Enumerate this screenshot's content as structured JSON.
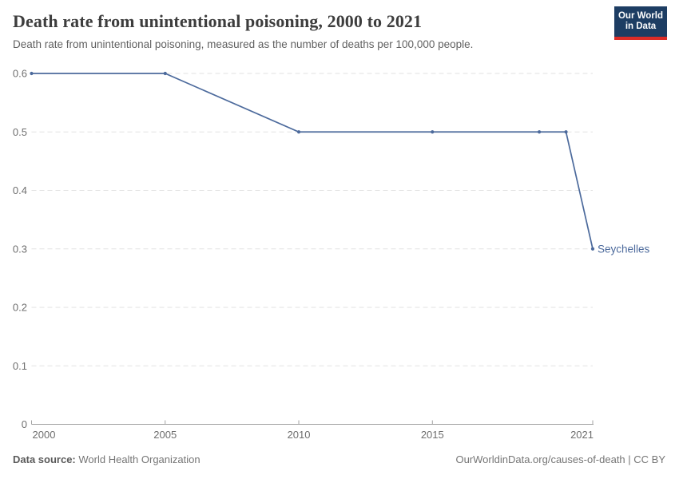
{
  "header": {
    "title": "Death rate from unintentional poisoning, 2000 to 2021",
    "subtitle": "Death rate from unintentional poisoning, measured as the number of deaths per 100,000 people.",
    "logo": {
      "line1": "Our World",
      "line2": "in Data",
      "bg_color": "#1d3d63",
      "stripe_color": "#dc2c27"
    }
  },
  "chart_data": {
    "type": "line",
    "title": "Death rate from unintentional poisoning, 2000 to 2021",
    "x": [
      2000,
      2005,
      2010,
      2015,
      2019,
      2020,
      2021
    ],
    "series": [
      {
        "name": "Seychelles",
        "values": [
          0.6,
          0.6,
          0.5,
          0.5,
          0.5,
          0.5,
          0.3
        ],
        "color": "#4c6a9c"
      }
    ],
    "xlabel": "",
    "ylabel": "",
    "xlim": [
      2000,
      2021
    ],
    "ylim": [
      0,
      0.6
    ],
    "x_ticks": [
      2000,
      2005,
      2010,
      2015,
      2021
    ],
    "y_ticks": [
      0,
      0.1,
      0.2,
      0.3,
      0.4,
      0.5,
      0.6
    ],
    "y_tick_labels": [
      "0",
      "0.1",
      "0.2",
      "0.3",
      "0.4",
      "0.5",
      "0.6"
    ],
    "grid": "horizontal dashed",
    "legend_position": "end-of-line label",
    "colors": {
      "gridline": "#e2e2e2",
      "axis": "#a3a3a3",
      "tick_text": "#6e6e6e"
    }
  },
  "footer": {
    "source_label": "Data source:",
    "source_value": "World Health Organization",
    "credit": "OurWorldinData.org/causes-of-death | CC BY"
  }
}
